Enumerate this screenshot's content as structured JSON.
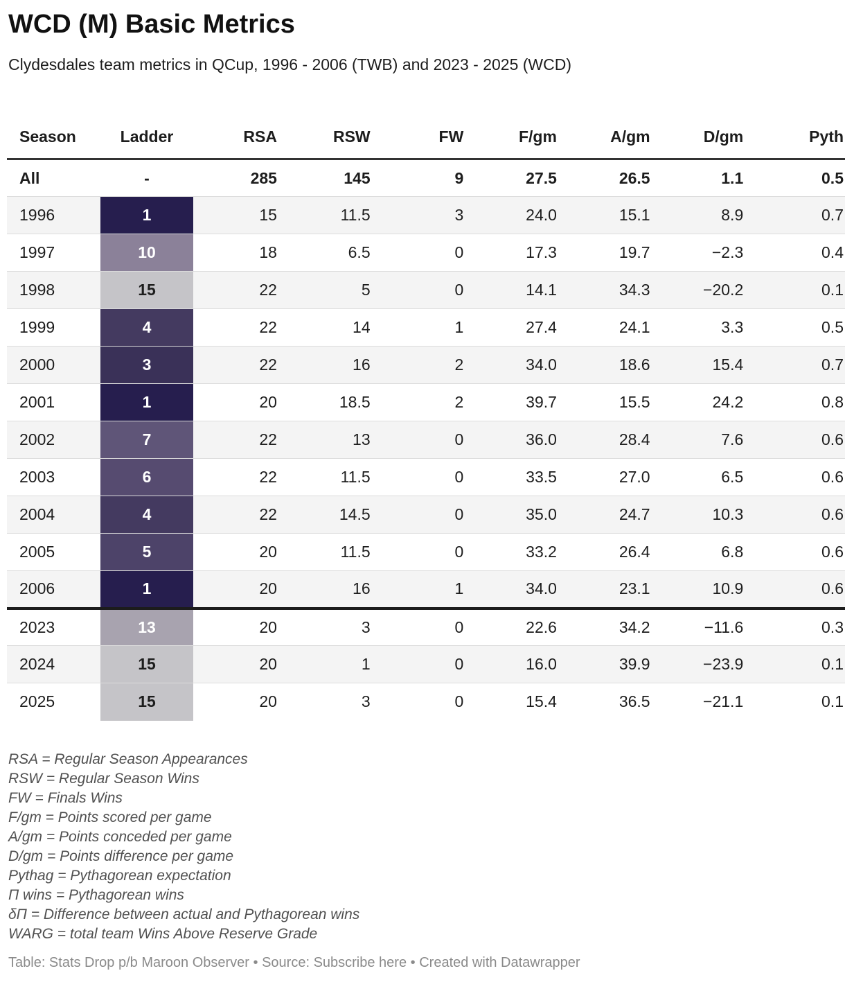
{
  "header": {
    "title": "WCD (M) Basic Metrics",
    "subtitle": "Clydesdales team metrics in QCup, 1996 - 2006 (TWB) and 2023 - 2025 (WCD)"
  },
  "chart_data": {
    "type": "table",
    "title": "WCD (M) Basic Metrics",
    "subtitle": "Clydesdales team metrics in QCup, 1996 - 2006 (TWB) and 2023 - 2025 (WCD)",
    "columns": [
      {
        "key": "season",
        "label": "Season",
        "align": "left"
      },
      {
        "key": "ladder",
        "label": "Ladder",
        "align": "center"
      },
      {
        "key": "rsa",
        "label": "RSA",
        "align": "right"
      },
      {
        "key": "rsw",
        "label": "RSW",
        "align": "right"
      },
      {
        "key": "fw",
        "label": "FW",
        "align": "right"
      },
      {
        "key": "fgm",
        "label": "F/gm",
        "align": "right"
      },
      {
        "key": "agm",
        "label": "A/gm",
        "align": "right"
      },
      {
        "key": "dgm",
        "label": "D/gm",
        "align": "right"
      },
      {
        "key": "pyth",
        "label": "Pyth",
        "align": "right"
      }
    ],
    "summary_row": {
      "season": "All",
      "ladder": "-",
      "ladder_bg": "",
      "ladder_fg": "#1d1d1d",
      "values": [
        "285",
        "145",
        "9",
        "27.5",
        "26.5",
        "1.1",
        "0.5"
      ]
    },
    "rows": [
      {
        "season": "1996",
        "ladder": "1",
        "ladder_bg": "#261e4e",
        "ladder_fg": "#ffffff",
        "values": [
          "15",
          "11.5",
          "3",
          "24.0",
          "15.1",
          "8.9",
          "0.7"
        ]
      },
      {
        "season": "1997",
        "ladder": "10",
        "ladder_bg": "#8b8199",
        "ladder_fg": "#ffffff",
        "values": [
          "18",
          "6.5",
          "0",
          "17.3",
          "19.7",
          "−2.3",
          "0.4"
        ]
      },
      {
        "season": "1998",
        "ladder": "15",
        "ladder_bg": "#c5c4c8",
        "ladder_fg": "#1d1d1d",
        "values": [
          "22",
          "5",
          "0",
          "14.1",
          "34.3",
          "−20.2",
          "0.1"
        ]
      },
      {
        "season": "1999",
        "ladder": "4",
        "ladder_bg": "#443a60",
        "ladder_fg": "#ffffff",
        "values": [
          "22",
          "14",
          "1",
          "27.4",
          "24.1",
          "3.3",
          "0.5"
        ]
      },
      {
        "season": "2000",
        "ladder": "3",
        "ladder_bg": "#3a3158",
        "ladder_fg": "#ffffff",
        "values": [
          "22",
          "16",
          "2",
          "34.0",
          "18.6",
          "15.4",
          "0.7"
        ]
      },
      {
        "season": "2001",
        "ladder": "1",
        "ladder_bg": "#261e4e",
        "ladder_fg": "#ffffff",
        "values": [
          "20",
          "18.5",
          "2",
          "39.7",
          "15.5",
          "24.2",
          "0.8"
        ]
      },
      {
        "season": "2002",
        "ladder": "7",
        "ladder_bg": "#5f5578",
        "ladder_fg": "#ffffff",
        "values": [
          "22",
          "13",
          "0",
          "36.0",
          "28.4",
          "7.6",
          "0.6"
        ]
      },
      {
        "season": "2003",
        "ladder": "6",
        "ladder_bg": "#564b70",
        "ladder_fg": "#ffffff",
        "values": [
          "22",
          "11.5",
          "0",
          "33.5",
          "27.0",
          "6.5",
          "0.6"
        ]
      },
      {
        "season": "2004",
        "ladder": "4",
        "ladder_bg": "#443a60",
        "ladder_fg": "#ffffff",
        "values": [
          "22",
          "14.5",
          "0",
          "35.0",
          "24.7",
          "10.3",
          "0.6"
        ]
      },
      {
        "season": "2005",
        "ladder": "5",
        "ladder_bg": "#4d4369",
        "ladder_fg": "#ffffff",
        "values": [
          "20",
          "11.5",
          "0",
          "33.2",
          "26.4",
          "6.8",
          "0.6"
        ]
      },
      {
        "season": "2006",
        "ladder": "1",
        "ladder_bg": "#261e4e",
        "ladder_fg": "#ffffff",
        "values": [
          "20",
          "16",
          "1",
          "34.0",
          "23.1",
          "10.9",
          "0.6"
        ]
      },
      {
        "season": "2023",
        "ladder": "13",
        "ladder_bg": "#a8a3af",
        "ladder_fg": "#ffffff",
        "values": [
          "20",
          "3",
          "0",
          "22.6",
          "34.2",
          "−11.6",
          "0.3"
        ],
        "section_break": true
      },
      {
        "season": "2024",
        "ladder": "15",
        "ladder_bg": "#c5c4c8",
        "ladder_fg": "#1d1d1d",
        "values": [
          "20",
          "1",
          "0",
          "16.0",
          "39.9",
          "−23.9",
          "0.1"
        ]
      },
      {
        "season": "2025",
        "ladder": "15",
        "ladder_bg": "#c5c4c8",
        "ladder_fg": "#1d1d1d",
        "values": [
          "20",
          "3",
          "0",
          "15.4",
          "36.5",
          "−21.1",
          "0.1"
        ]
      }
    ],
    "heatmap_scale": {
      "1": "#261e4e",
      "3": "#3a3158",
      "4": "#443a60",
      "5": "#4d4369",
      "6": "#564b70",
      "7": "#5f5578",
      "10": "#8b8199",
      "13": "#a8a3af",
      "15": "#c5c4c8"
    },
    "layout_hints": {
      "striped_rows": true,
      "stripe_color": "#f4f4f4",
      "header_rule_color": "#333333",
      "section_divider_color": "#1c1c1c",
      "last_column_clipped": true
    }
  },
  "footnotes": [
    "RSA = Regular Season Appearances",
    "RSW = Regular Season Wins",
    "FW = Finals Wins",
    "F/gm = Points scored per game",
    "A/gm = Points conceded per game",
    "D/gm = Points difference per game",
    "Pythag = Pythagorean expectation",
    "Π wins = Pythagorean wins",
    "δΠ = Difference between actual and Pythagorean wins",
    "WARG = total team Wins Above Reserve Grade"
  ],
  "footer": {
    "credit": "Table: Stats Drop p/b Maroon Observer",
    "sep1": " • ",
    "source_label": "Source: ",
    "source_link": "Subscribe here",
    "sep2": " • ",
    "created": "Created with Datawrapper"
  }
}
